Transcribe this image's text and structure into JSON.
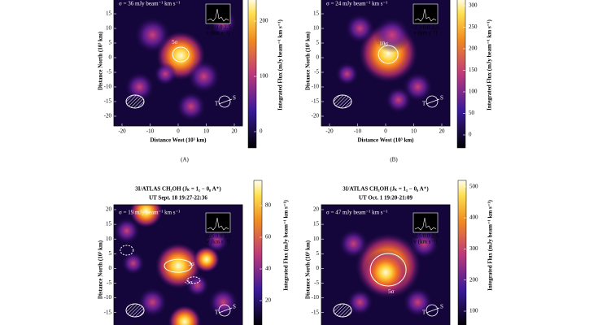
{
  "panels": [
    {
      "caption": "(A)",
      "noise": "σ = 36 mJy beam⁻¹ km s⁻¹",
      "xlabel": "Distance West (10³ km)",
      "ylabel": "Distance North (10³ km)",
      "xticks": [
        -20,
        -10,
        0,
        10,
        20
      ],
      "yticks": [
        15,
        10,
        5,
        0,
        -5,
        -10,
        -15,
        -20
      ],
      "colorbar_label": "Integrated Flux (mJy beam⁻¹ km s⁻¹)",
      "colorbar_ticks": [
        0,
        100,
        200
      ],
      "contours": [
        "5σ"
      ],
      "inset_ticks": "-2.5 0.0 2.5",
      "inset_xlabel": "v (km s⁻¹)",
      "trail": "T",
      "sun": "S"
    },
    {
      "caption": "(B)",
      "noise": "σ = 24 mJy beam⁻¹ km s⁻¹",
      "xlabel": "Distance West (10³ km)",
      "ylabel": "Distance North (10³ km)",
      "xticks": [
        -20,
        -10,
        0,
        10,
        20
      ],
      "yticks": [
        15,
        10,
        5,
        0,
        -5,
        -10,
        -15,
        -20
      ],
      "colorbar_label": "Integrated Flux (mJy beam⁻¹ km s⁻¹)",
      "colorbar_ticks": [
        0,
        50,
        100,
        150,
        200,
        250,
        300
      ],
      "contours": [
        "10σ"
      ],
      "inset_ticks": "-2.5 0.0 2.5",
      "inset_xlabel": "v (km s⁻¹)",
      "trail": "T",
      "sun": "S"
    },
    {
      "title": "3I/ATLAS CH₃OH (Jₖ = 1₁ − 0₀ A⁺)",
      "subtitle": "UT Sept. 18 19:27-22:36",
      "noise": "σ = 19 mJy beam⁻¹ km s⁻¹",
      "ylabel": "Distance North (10³ km)",
      "yticks": [
        20,
        15,
        10,
        5,
        0,
        -5,
        -10,
        -15
      ],
      "colorbar_label": "Integrated Flux (mJy beam⁻¹ km s⁻¹)",
      "colorbar_ticks": [
        20,
        40,
        60,
        80
      ],
      "contours": [
        "3σ",
        "-3σ"
      ],
      "inset_ticks": "-2.5 0.0 2.5",
      "inset_xlabel": "v (km s⁻¹)",
      "trail": "T",
      "sun": "S"
    },
    {
      "title": "3I/ATLAS CH₃OH (Jₖ = 1₁ − 0₀ A⁺)",
      "subtitle": "UT Oct. 1 19:20-21:09",
      "noise": "σ = 47 mJy beam⁻¹ km s⁻¹",
      "ylabel": "Distance North (10³ km)",
      "yticks": [
        20,
        15,
        10,
        5,
        0,
        -5,
        -10,
        -15
      ],
      "colorbar_label": "Integrated Flux (mJy beam⁻¹ km s⁻¹)",
      "colorbar_ticks": [
        100,
        200,
        300,
        400,
        500
      ],
      "contours": [
        "5σ"
      ],
      "inset_ticks": "-2.5 0.0 2.5",
      "inset_xlabel": "v (km s⁻¹)",
      "trail": "T",
      "sun": "S"
    }
  ]
}
